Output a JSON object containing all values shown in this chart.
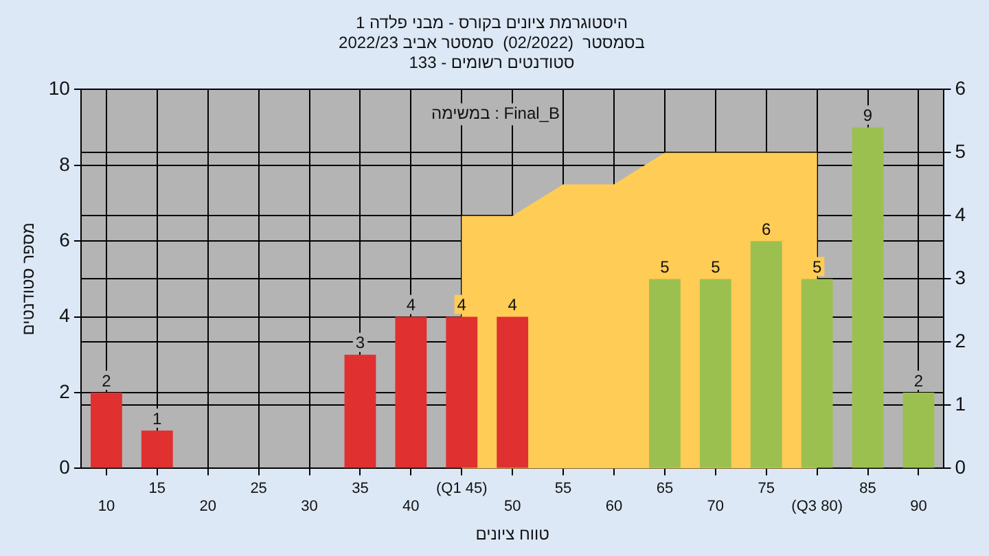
{
  "chart_data": {
    "type": "bar",
    "title": "היסטוגרמת ציונים בקורס - מבני פלדה 1",
    "subtitle": "בסמסטר  (02/2022)  סמסטר אביב 2022/23\nסטודנטים רשומים - 133",
    "xlabel": "טווח ציונים",
    "ylabel": "מספר סטודנטים",
    "annotations": [
      "במשימה : Final_B"
    ],
    "categories": [
      "10",
      "15",
      "20",
      "25",
      "30",
      "35",
      "40",
      "(Q1 45)",
      "50",
      "55",
      "60",
      "65",
      "70",
      "75",
      "(Q3 80)",
      "85",
      "90"
    ],
    "series": [
      {
        "colors": [
          "#e03030",
          "#e03030",
          "#e03030",
          "#e03030",
          "#e03030",
          "#e03030",
          "#e03030",
          "#e03030",
          "#e03030",
          "#9cc050",
          "#9cc050",
          "#9cc050",
          "#9cc050",
          "#9cc050",
          "#9cc050",
          "#9cc050",
          "#9cc050"
        ],
        "values": [
          2,
          1,
          0,
          0,
          0,
          3,
          4,
          4,
          4,
          0,
          0,
          5,
          5,
          6,
          5,
          9,
          2
        ],
        "value_labels": [
          "2",
          "1",
          null,
          null,
          null,
          "3",
          "4",
          "4",
          "4",
          null,
          null,
          "5",
          "5",
          "6",
          "5",
          "9",
          "2"
        ]
      },
      {
        "type": "area",
        "axis": "y2",
        "color": "#ffcc55",
        "values": [
          null,
          null,
          null,
          null,
          null,
          null,
          null,
          4,
          4,
          4.5,
          4.5,
          5,
          5,
          5,
          5,
          null,
          null
        ]
      }
    ],
    "ylim": [
      0,
      10
    ],
    "yticks": [
      0,
      2,
      4,
      6,
      8,
      10
    ],
    "y2lim": [
      0,
      6
    ],
    "y2ticks": [
      0,
      1,
      2,
      3,
      4,
      5,
      6
    ],
    "grid": true,
    "legend": false
  }
}
